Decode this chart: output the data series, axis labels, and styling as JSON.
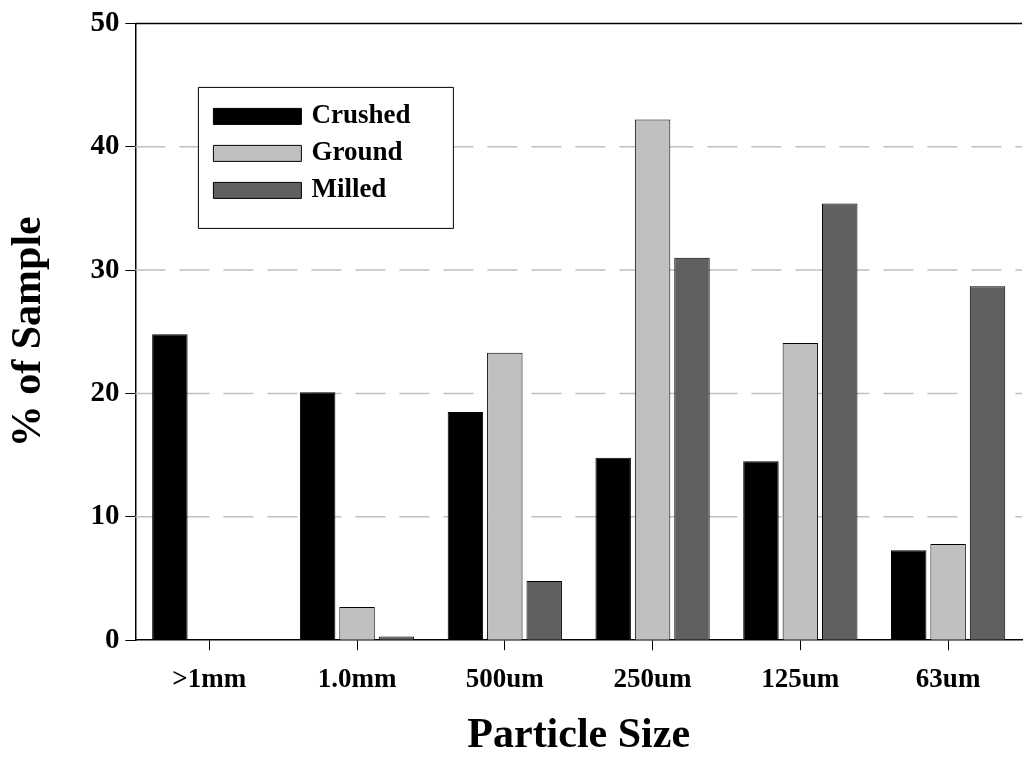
{
  "chart_data": {
    "type": "bar",
    "xlabel": "Particle Size",
    "ylabel": "% of Sample",
    "categories": [
      ">1mm",
      "1.0mm",
      "500um",
      "250um",
      "125um",
      "63um"
    ],
    "series": [
      {
        "name": "Crushed",
        "color": "#000000",
        "values": [
          24.8,
          20.1,
          18.5,
          14.8,
          14.5,
          7.3
        ]
      },
      {
        "name": "Ground",
        "color": "#c0c0c0",
        "values": [
          0,
          2.7,
          23.3,
          42.2,
          24.1,
          7.8
        ]
      },
      {
        "name": "Milled",
        "color": "#606060",
        "values": [
          0,
          0.3,
          4.8,
          31.0,
          35.4,
          28.7
        ]
      }
    ],
    "ylim": [
      0,
      50
    ],
    "yticks": [
      0,
      10,
      20,
      30,
      40,
      50
    ],
    "grid": "y",
    "legend": "top left"
  }
}
